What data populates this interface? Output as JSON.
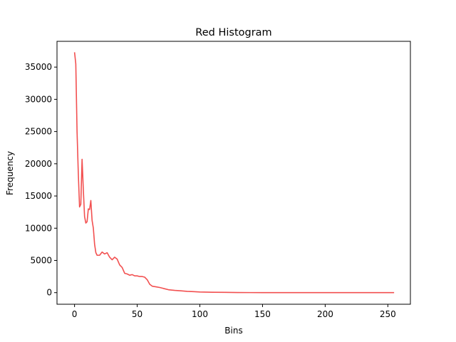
{
  "chart_data": {
    "type": "line",
    "title": "Red Histogram",
    "xlabel": "Bins",
    "ylabel": "Frequency",
    "xlim": [
      -14,
      268
    ],
    "ylim": [
      -1800,
      39000
    ],
    "xticks": [
      0,
      50,
      100,
      150,
      200,
      250
    ],
    "yticks": [
      0,
      5000,
      10000,
      15000,
      20000,
      25000,
      30000,
      35000
    ],
    "grid": false,
    "legend": "none",
    "series": [
      {
        "color": "#f25050",
        "x": [
          0,
          1,
          2,
          3,
          4,
          5,
          6,
          7,
          8,
          9,
          10,
          11,
          12,
          13,
          14,
          15,
          16,
          17,
          18,
          19,
          20,
          22,
          24,
          26,
          28,
          30,
          32,
          34,
          36,
          38,
          40,
          42,
          44,
          46,
          48,
          50,
          52,
          54,
          56,
          58,
          60,
          62,
          65,
          68,
          70,
          72,
          75,
          80,
          85,
          90,
          95,
          100,
          110,
          120,
          130,
          140,
          150,
          200,
          255
        ],
        "y": [
          37300,
          35500,
          25000,
          18500,
          13300,
          13700,
          20700,
          16000,
          11800,
          10800,
          11000,
          13000,
          12900,
          14300,
          11200,
          10000,
          7500,
          6200,
          5800,
          5800,
          5800,
          6300,
          6000,
          6200,
          5500,
          5100,
          5500,
          5200,
          4300,
          3900,
          3000,
          2900,
          2700,
          2800,
          2600,
          2600,
          2500,
          2500,
          2400,
          2000,
          1300,
          1000,
          900,
          800,
          700,
          600,
          450,
          350,
          280,
          200,
          150,
          100,
          60,
          40,
          20,
          10,
          5,
          0,
          0
        ]
      }
    ]
  }
}
